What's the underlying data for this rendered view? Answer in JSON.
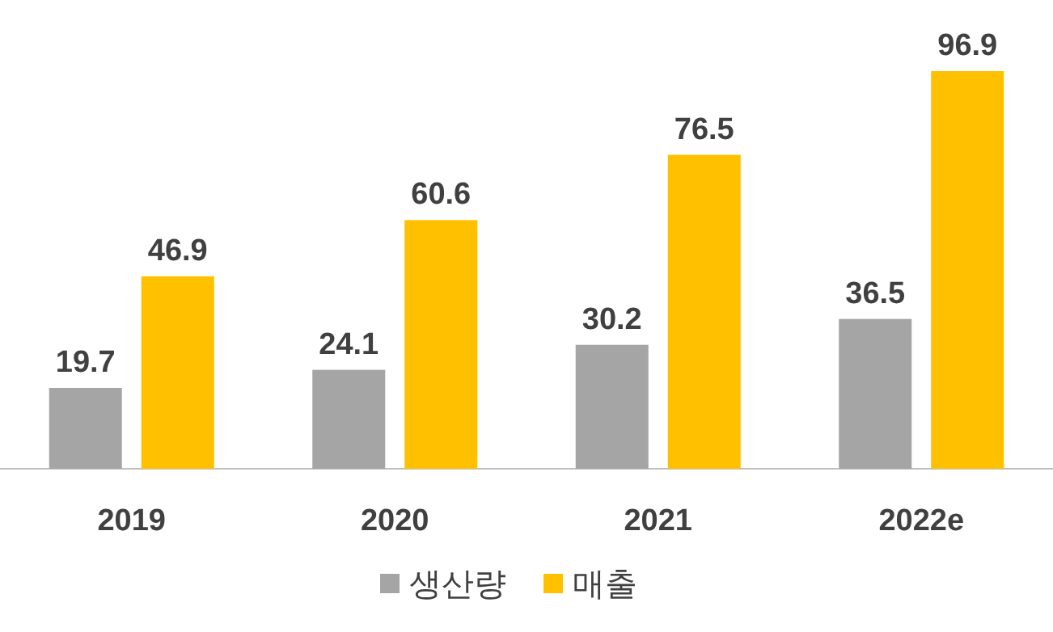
{
  "chart_data": {
    "type": "bar",
    "categories": [
      "2019",
      "2020",
      "2021",
      "2022e"
    ],
    "series": [
      {
        "name": "생산량",
        "color": "#a5a5a5",
        "values": [
          19.7,
          24.1,
          30.2,
          36.5
        ]
      },
      {
        "name": "매출",
        "color": "#ffc000",
        "values": [
          46.9,
          60.6,
          76.5,
          96.9
        ]
      }
    ],
    "data_labels": true,
    "legend": "bottom"
  }
}
